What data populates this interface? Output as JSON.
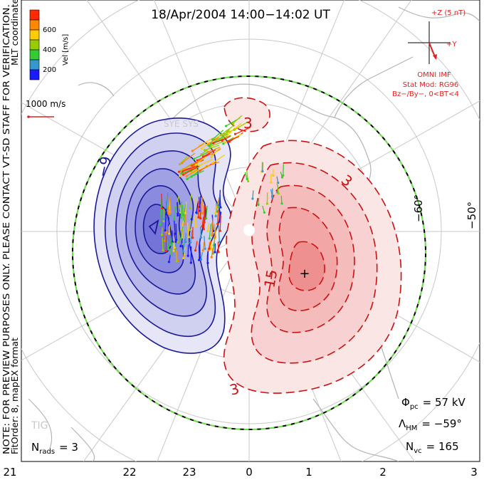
{
  "title": "18/Apr/2004 14:00−14:02 UT",
  "side_note": "NOTE: FOR PREVIEW PURPOSES ONLY. PLEASE CONTACT VT-SD STAFF FOR VERIFICATION.",
  "fit_order": "FitOrder: 8, mapEX format",
  "coords": "MLT coordinates",
  "scale": {
    "title": "Vel [m/s]",
    "ticks": [
      "200",
      "400",
      "600"
    ],
    "colors": [
      "#1a1aff",
      "#3399cc",
      "#33cc33",
      "#99cc00",
      "#ffcc00",
      "#ff8800",
      "#ff2a00"
    ]
  },
  "vector_ref": "1000 m/s",
  "imf": {
    "z_label": "+Z (5 nT)",
    "y_label": "+Y",
    "source": "OMNI IMF",
    "model": "Stat Mod: RG96",
    "condition": "Bz−/By−, 0<BT<4"
  },
  "stats": {
    "phi_label": "Φ",
    "phi_sub": "pc",
    "phi_value": "= 57 kV",
    "lambda_label": "Λ",
    "lambda_sub": "HM",
    "lambda_value": "= −59°",
    "nvc_label": "N",
    "nvc_sub": "vc",
    "nvc_value": "= 165",
    "nrads_label": "N",
    "nrads_sub": "rads",
    "nrads_value": "= 3"
  },
  "station_labels": [
    "TIG",
    "SYE SYS"
  ],
  "chart_data": {
    "type": "contour",
    "x_ticks": [
      "21",
      "22",
      "23",
      "0",
      "1",
      "2",
      "3"
    ],
    "lat_labels": [
      "−60°",
      "−50°"
    ],
    "contour_labels": [
      "−9",
      "3",
      "3",
      "15",
      "3"
    ],
    "potential_max": "+",
    "potential_min": "×"
  }
}
